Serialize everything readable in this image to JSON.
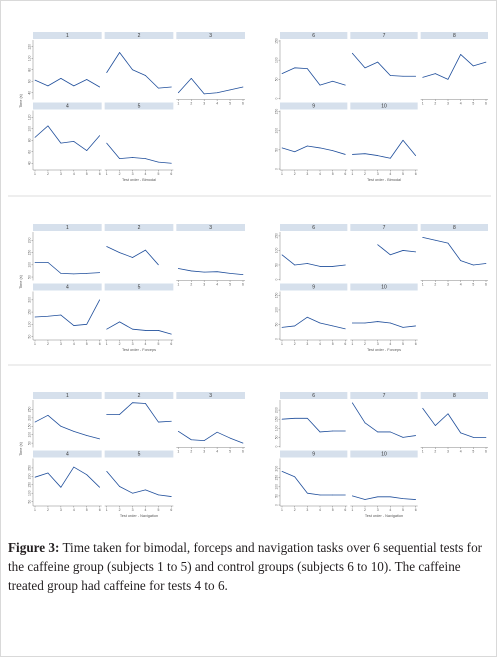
{
  "caption": {
    "label": "Figure 3:",
    "text": "Time taken for bimodal, forceps and navigation tasks over 6 sequential tests for the caffeine group (subjects 1 to 5) and control groups (subjects 6 to 10). The caffeine treated group had caffeine for tests 4 to 6."
  },
  "colors": {
    "line": "#1f4e9b",
    "strip": "#d6e0ec",
    "axis": "#666666"
  },
  "chart_data": [
    {
      "type": "line",
      "task": "Bimodal",
      "group": "caffeine",
      "xlabel": "Test order - Bimodal",
      "ylabel": "Time (s)",
      "ylim": [
        30,
        130
      ],
      "yticks": [
        "40",
        "60",
        "80",
        "100",
        "120"
      ],
      "x": [
        1,
        2,
        3,
        4,
        5,
        6
      ],
      "series": [
        {
          "name": "1",
          "values": [
            62,
            52,
            65,
            52,
            63,
            50
          ]
        },
        {
          "name": "2",
          "values": [
            75,
            110,
            80,
            70,
            48,
            50
          ]
        },
        {
          "name": "3",
          "values": [
            40,
            65,
            38,
            40,
            45,
            50
          ]
        },
        {
          "name": "4",
          "values": [
            85,
            105,
            75,
            78,
            62,
            88
          ]
        },
        {
          "name": "5",
          "values": [
            75,
            48,
            50,
            48,
            42,
            40
          ]
        }
      ]
    },
    {
      "type": "line",
      "task": "Bimodal",
      "group": "control",
      "xlabel": "Test order - Bimodal",
      "ylabel": "",
      "ylim": [
        0,
        150
      ],
      "yticks": [
        "0",
        "50",
        "100",
        "150"
      ],
      "x": [
        1,
        2,
        3,
        4,
        5,
        6
      ],
      "series": [
        {
          "name": "6",
          "values": [
            65,
            80,
            78,
            35,
            45,
            35
          ]
        },
        {
          "name": "7",
          "values": [
            118,
            80,
            95,
            60,
            58,
            58
          ]
        },
        {
          "name": "8",
          "values": [
            55,
            65,
            50,
            115,
            85,
            95
          ]
        },
        {
          "name": "9",
          "values": [
            55,
            45,
            60,
            55,
            48,
            38
          ]
        },
        {
          "name": "10",
          "values": [
            38,
            40,
            35,
            28,
            75,
            35
          ]
        }
      ]
    },
    {
      "type": "line",
      "task": "Forceps",
      "group": "caffeine",
      "xlabel": "Test order - Forceps",
      "ylabel": "Time (s)",
      "ylim": [
        40,
        230
      ],
      "yticks": [
        "50",
        "100",
        "150",
        "200"
      ],
      "x": [
        1,
        2,
        3,
        4,
        5,
        6
      ],
      "series": [
        {
          "name": "1",
          "values": [
            110,
            110,
            65,
            63,
            65,
            68
          ]
        },
        {
          "name": "2",
          "values": [
            175,
            150,
            130,
            160,
            100,
            null
          ]
        },
        {
          "name": "3",
          "values": [
            85,
            75,
            70,
            72,
            65,
            60
          ]
        },
        {
          "name": "4",
          "values": [
            130,
            133,
            138,
            95,
            100,
            200
          ]
        },
        {
          "name": "5",
          "values": [
            80,
            110,
            80,
            75,
            75,
            60
          ]
        }
      ]
    },
    {
      "type": "line",
      "task": "Forceps",
      "group": "control",
      "xlabel": "Test order - Forceps",
      "ylabel": "",
      "ylim": [
        0,
        160
      ],
      "yticks": [
        "0",
        "50",
        "100",
        "150"
      ],
      "x": [
        1,
        2,
        3,
        4,
        5,
        6
      ],
      "series": [
        {
          "name": "6",
          "values": [
            85,
            50,
            55,
            45,
            45,
            50
          ]
        },
        {
          "name": "7",
          "values": [
            null,
            null,
            120,
            85,
            100,
            95
          ]
        },
        {
          "name": "8",
          "values": [
            145,
            135,
            125,
            65,
            50,
            55
          ]
        },
        {
          "name": "9",
          "values": [
            40,
            45,
            75,
            55,
            45,
            35
          ]
        },
        {
          "name": "10",
          "values": [
            55,
            55,
            60,
            55,
            40,
            45
          ]
        }
      ]
    },
    {
      "type": "line",
      "task": "Navigation",
      "group": "caffeine",
      "xlabel": "Test order - Navigation",
      "ylabel": "Time (s)",
      "ylim": [
        30,
        300
      ],
      "yticks": [
        "50",
        "100",
        "150",
        "200",
        "250"
      ],
      "x": [
        1,
        2,
        3,
        4,
        5,
        6
      ],
      "series": [
        {
          "name": "1",
          "values": [
            175,
            215,
            150,
            120,
            95,
            75
          ]
        },
        {
          "name": "2",
          "values": [
            220,
            220,
            290,
            285,
            175,
            180
          ]
        },
        {
          "name": "3",
          "values": [
            120,
            70,
            65,
            115,
            80,
            50
          ]
        },
        {
          "name": "4",
          "values": [
            195,
            220,
            135,
            255,
            210,
            135
          ]
        },
        {
          "name": "5",
          "values": [
            230,
            140,
            100,
            120,
            90,
            80
          ]
        }
      ]
    },
    {
      "type": "line",
      "task": "Navigation",
      "group": "control",
      "xlabel": "Test order - Navigation",
      "ylabel": "",
      "ylim": [
        0,
        250
      ],
      "yticks": [
        "0",
        "50",
        "100",
        "150",
        "200"
      ],
      "x": [
        1,
        2,
        3,
        4,
        5,
        6
      ],
      "series": [
        {
          "name": "6",
          "values": [
            150,
            155,
            155,
            80,
            85,
            85
          ]
        },
        {
          "name": "7",
          "values": [
            240,
            130,
            80,
            80,
            50,
            60
          ]
        },
        {
          "name": "8",
          "values": [
            210,
            115,
            180,
            75,
            50,
            50
          ]
        },
        {
          "name": "9",
          "values": [
            185,
            155,
            65,
            55,
            55,
            55
          ]
        },
        {
          "name": "10",
          "values": [
            50,
            30,
            45,
            45,
            35,
            30
          ]
        }
      ]
    }
  ]
}
